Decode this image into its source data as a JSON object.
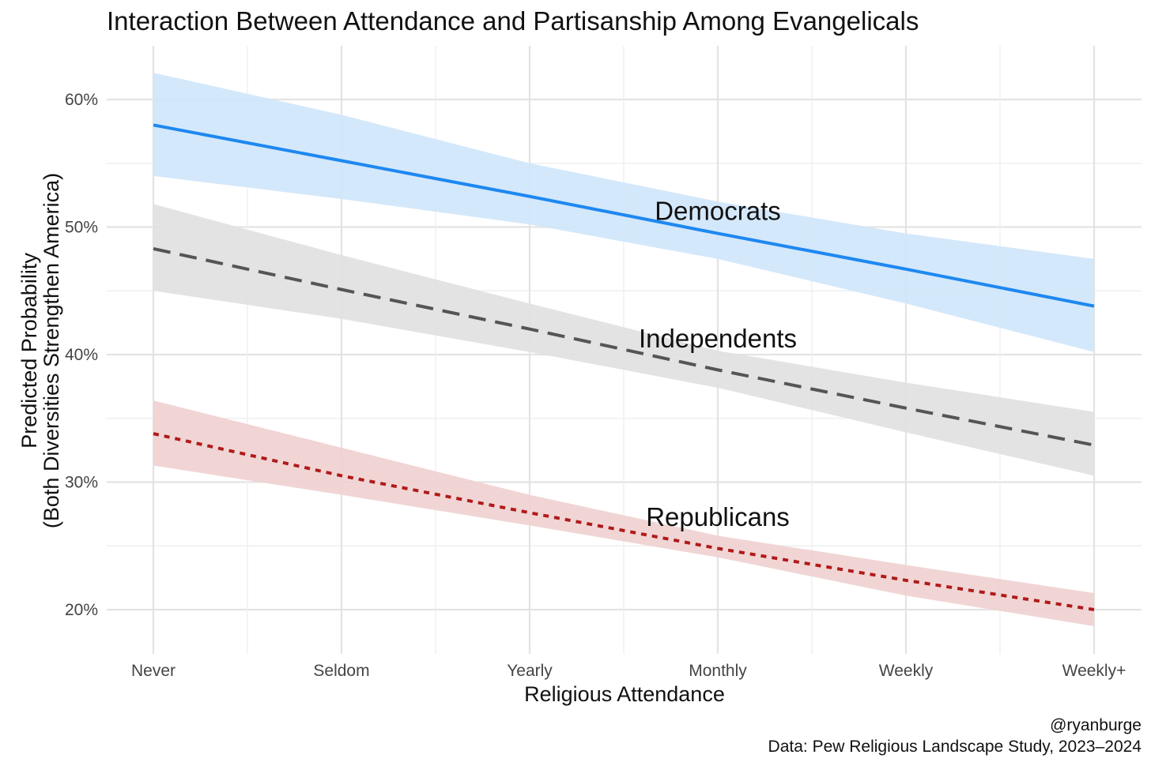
{
  "chart_data": {
    "type": "line",
    "title": "Interaction Between Attendance and Partisanship Among Evangelicals",
    "xlabel": "Religious Attendance",
    "ylabel": [
      "Predicted Probability",
      "(Both Diversities Strengthen America)"
    ],
    "categories": [
      "Never",
      "Seldom",
      "Yearly",
      "Monthly",
      "Weekly",
      "Weekly+"
    ],
    "ylim": [
      0.17,
      0.63
    ],
    "yticks": [
      0.2,
      0.3,
      0.4,
      0.5,
      0.6
    ],
    "ytick_labels": [
      "20%",
      "30%",
      "40%",
      "50%",
      "60%"
    ],
    "grid": true,
    "legend": "none",
    "series": [
      {
        "name": "Democrats",
        "values": [
          0.58,
          0.552,
          0.524,
          0.495,
          0.467,
          0.438
        ],
        "lower": [
          0.54,
          0.522,
          0.502,
          0.475,
          0.44,
          0.402
        ],
        "upper": [
          0.621,
          0.588,
          0.55,
          0.52,
          0.495,
          0.475
        ],
        "color": "#1e88f0",
        "fill": "#cfe5fb",
        "dash": "solid"
      },
      {
        "name": "Independents",
        "values": [
          0.483,
          0.451,
          0.42,
          0.388,
          0.358,
          0.329
        ],
        "lower": [
          0.45,
          0.428,
          0.402,
          0.374,
          0.339,
          0.305
        ],
        "upper": [
          0.518,
          0.478,
          0.44,
          0.403,
          0.378,
          0.355
        ],
        "color": "#555555",
        "fill": "#e0e0e0",
        "dash": "dashed"
      },
      {
        "name": "Republicans",
        "values": [
          0.338,
          0.305,
          0.276,
          0.248,
          0.223,
          0.2
        ],
        "lower": [
          0.313,
          0.29,
          0.266,
          0.241,
          0.211,
          0.187
        ],
        "upper": [
          0.364,
          0.327,
          0.29,
          0.258,
          0.235,
          0.213
        ],
        "color": "#b01a1a",
        "fill": "#efd0d0",
        "dash": "dotted"
      }
    ],
    "annotations": [
      {
        "text": "Democrats",
        "x": "Monthly",
        "y": 0.513
      },
      {
        "text": "Independents",
        "x": "Monthly",
        "y": 0.413
      },
      {
        "text": "Republicans",
        "x": "Monthly",
        "y": 0.273
      }
    ],
    "caption": [
      "@ryanburge",
      "Data: Pew Religious Landscape Study, 2023–2024"
    ]
  }
}
